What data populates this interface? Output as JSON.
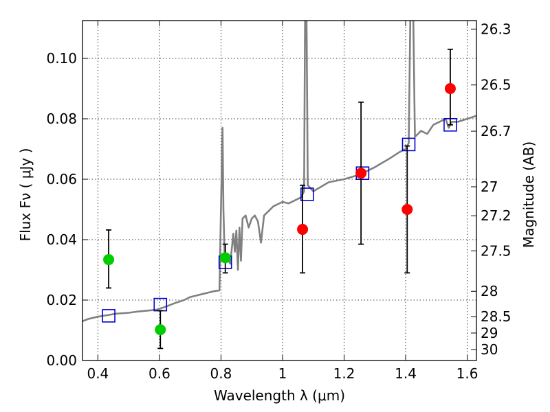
{
  "chart_data": {
    "type": "scatter",
    "xlabel": "Wavelength  λ (μm)",
    "ylabel": "Flux  Fν  ( μJy )",
    "y2label": "Magnitude (AB)",
    "xlim": [
      0.35,
      1.63
    ],
    "ylim": [
      0.0,
      0.1125
    ],
    "grid": true,
    "x_ticks": [
      0.4,
      0.6,
      0.8,
      1.0,
      1.2,
      1.4,
      1.6
    ],
    "x_tick_labels": [
      "0.4",
      "0.6",
      "0.8",
      "1",
      "1.2",
      "1.4",
      "1.6"
    ],
    "y_ticks": [
      0.0,
      0.02,
      0.04,
      0.06,
      0.08,
      0.1
    ],
    "y_tick_labels": [
      "0.00",
      "0.02",
      "0.04",
      "0.06",
      "0.08",
      "0.10"
    ],
    "y2_ticks": [
      {
        "label": "26.3",
        "flux": 0.1097
      },
      {
        "label": "26.5",
        "flux": 0.0912
      },
      {
        "label": "26.7",
        "flux": 0.0759
      },
      {
        "label": "27",
        "flux": 0.0575
      },
      {
        "label": "27.2",
        "flux": 0.0479
      },
      {
        "label": "27.5",
        "flux": 0.0363
      },
      {
        "label": "28",
        "flux": 0.0229
      },
      {
        "label": "28.5",
        "flux": 0.0145
      },
      {
        "label": "29",
        "flux": 0.0091
      },
      {
        "label": "30",
        "flux": 0.0036
      }
    ],
    "series": [
      {
        "kind": "line",
        "color": "#808080",
        "points": [
          [
            0.35,
            0.013
          ],
          [
            0.37,
            0.0138
          ],
          [
            0.4,
            0.0145
          ],
          [
            0.43,
            0.015
          ],
          [
            0.46,
            0.0155
          ],
          [
            0.5,
            0.0158
          ],
          [
            0.53,
            0.0162
          ],
          [
            0.56,
            0.0165
          ],
          [
            0.59,
            0.0168
          ],
          [
            0.62,
            0.0178
          ],
          [
            0.65,
            0.019
          ],
          [
            0.68,
            0.02
          ],
          [
            0.7,
            0.021
          ],
          [
            0.72,
            0.0215
          ],
          [
            0.74,
            0.022
          ],
          [
            0.76,
            0.0225
          ],
          [
            0.78,
            0.023
          ],
          [
            0.795,
            0.0232
          ],
          [
            0.8,
            0.05
          ],
          [
            0.805,
            0.077
          ],
          [
            0.808,
            0.05
          ],
          [
            0.812,
            0.034
          ],
          [
            0.82,
            0.034
          ],
          [
            0.83,
            0.032
          ],
          [
            0.84,
            0.042
          ],
          [
            0.845,
            0.036
          ],
          [
            0.85,
            0.043
          ],
          [
            0.855,
            0.03
          ],
          [
            0.86,
            0.044
          ],
          [
            0.865,
            0.033
          ],
          [
            0.87,
            0.047
          ],
          [
            0.88,
            0.048
          ],
          [
            0.89,
            0.044
          ],
          [
            0.9,
            0.047
          ],
          [
            0.91,
            0.048
          ],
          [
            0.92,
            0.046
          ],
          [
            0.93,
            0.039
          ],
          [
            0.94,
            0.048
          ],
          [
            0.95,
            0.049
          ],
          [
            0.97,
            0.051
          ],
          [
            1.0,
            0.0525
          ],
          [
            1.02,
            0.052
          ],
          [
            1.04,
            0.053
          ],
          [
            1.06,
            0.054
          ],
          [
            1.07,
            0.056
          ],
          [
            1.073,
            0.113
          ],
          [
            1.078,
            0.113
          ],
          [
            1.082,
            0.058
          ],
          [
            1.1,
            0.056
          ],
          [
            1.15,
            0.059
          ],
          [
            1.2,
            0.06
          ],
          [
            1.25,
            0.0615
          ],
          [
            1.3,
            0.064
          ],
          [
            1.35,
            0.067
          ],
          [
            1.38,
            0.069
          ],
          [
            1.4,
            0.07
          ],
          [
            1.41,
            0.072
          ],
          [
            1.415,
            0.113
          ],
          [
            1.425,
            0.113
          ],
          [
            1.43,
            0.074
          ],
          [
            1.45,
            0.076
          ],
          [
            1.47,
            0.075
          ],
          [
            1.49,
            0.078
          ],
          [
            1.51,
            0.079
          ],
          [
            1.53,
            0.08
          ],
          [
            1.54,
            0.077
          ],
          [
            1.55,
            0.079
          ],
          [
            1.57,
            0.079
          ],
          [
            1.6,
            0.08
          ],
          [
            1.63,
            0.081
          ]
        ]
      },
      {
        "kind": "model_photometry",
        "marker": "open-square",
        "color": "#0000cc",
        "points": [
          [
            0.435,
            0.0148
          ],
          [
            0.603,
            0.0185
          ],
          [
            0.814,
            0.0325
          ],
          [
            1.08,
            0.055
          ],
          [
            1.26,
            0.062
          ],
          [
            1.41,
            0.0715
          ],
          [
            1.545,
            0.078
          ]
        ]
      },
      {
        "kind": "detections",
        "marker": "filled-circle",
        "color": "#ff0000",
        "points": [
          [
            1.065,
            0.0434,
            0.029,
            0.058
          ],
          [
            1.255,
            0.062,
            0.0385,
            0.0855
          ],
          [
            1.405,
            0.05,
            0.029,
            0.071
          ],
          [
            1.545,
            0.09,
            0.078,
            0.103
          ]
        ]
      },
      {
        "kind": "detections",
        "marker": "filled-circle",
        "color": "#00cc00",
        "points": [
          [
            0.435,
            0.0334,
            0.024,
            0.0432
          ],
          [
            0.603,
            0.0102,
            0.004,
            0.0165
          ],
          [
            0.814,
            0.034,
            0.029,
            0.0385
          ]
        ]
      }
    ]
  }
}
